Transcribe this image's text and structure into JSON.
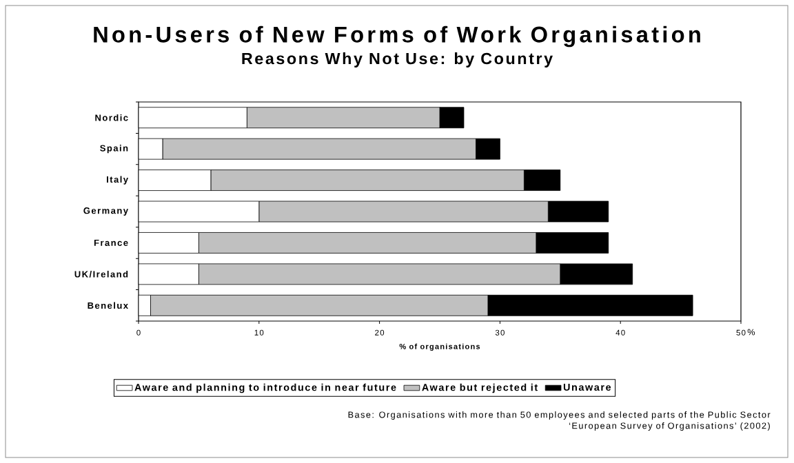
{
  "chart_data": {
    "type": "bar",
    "orientation": "horizontal",
    "stacked": true,
    "title": "Non-Users of New Forms of Work Organisation",
    "subtitle": "Reasons Why Not Use: by Country",
    "xlabel": "% of organisations",
    "categories": [
      "Nordic",
      "Spain",
      "Italy",
      "Germany",
      "France",
      "UK/Ireland",
      "Benelux"
    ],
    "series": [
      {
        "name": "Aware and planning to introduce in near future",
        "color": "#ffffff",
        "values": [
          9,
          2,
          6,
          10,
          5,
          5,
          1
        ]
      },
      {
        "name": "Aware but rejected it",
        "color": "#c0c0c0",
        "values": [
          16,
          26,
          26,
          24,
          28,
          30,
          28
        ]
      },
      {
        "name": "Unaware",
        "color": "#000000",
        "values": [
          2,
          2,
          3,
          5,
          6,
          6,
          17
        ]
      }
    ],
    "xlim": [
      0,
      50
    ],
    "xticks": [
      0,
      10,
      20,
      30,
      40,
      50
    ],
    "legend": "bottom",
    "annotations": [
      "%",
      "Base: Organisations with more than 50 employees and selected parts of the Public Sector",
      "‘European Survey of Organisations’ (2002)"
    ]
  }
}
